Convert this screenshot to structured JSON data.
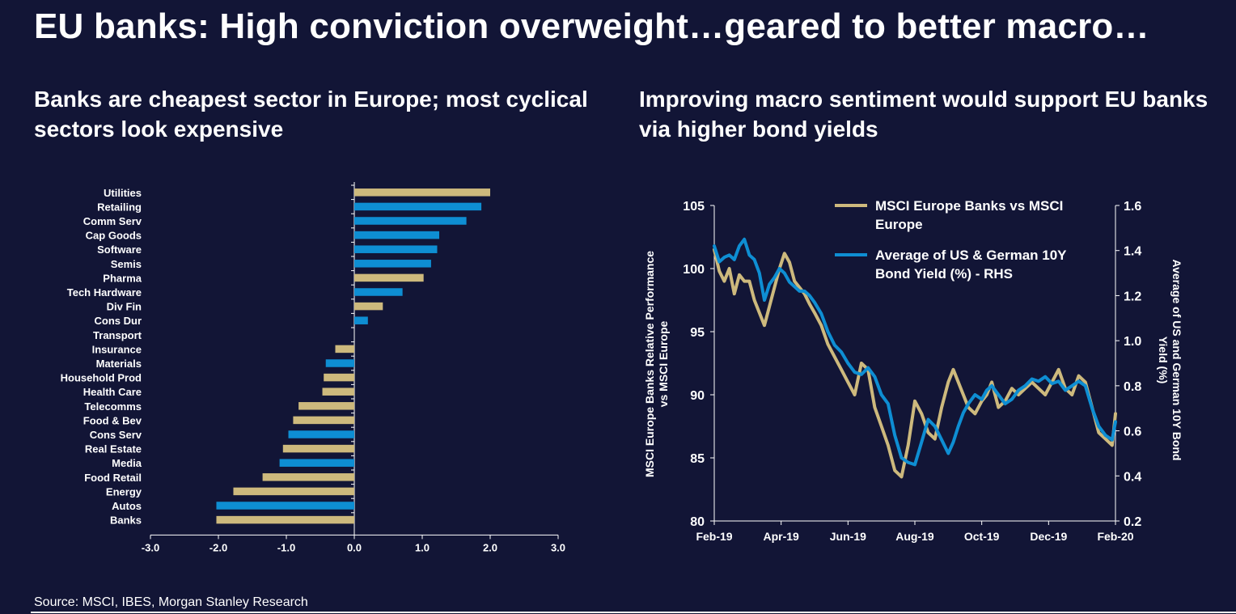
{
  "slide": {
    "title": "EU banks: High conviction overweight…geared to better macro…",
    "source": "Source: MSCI, IBES, Morgan Stanley Research"
  },
  "left_panel": {
    "subtitle": "Banks are cheapest sector in Europe; most cyclical sectors look expensive"
  },
  "right_panel": {
    "subtitle": "Improving macro sentiment would support EU banks via higher bond yields"
  },
  "colors": {
    "background": "#121536",
    "gold": "#cdb97d",
    "blue": "#0e8ed3",
    "text": "#ffffff"
  },
  "chart_data": [
    {
      "type": "bar",
      "orientation": "horizontal",
      "title": "",
      "categories": [
        "Utilities",
        "Retailing",
        "Comm Serv",
        "Cap Goods",
        "Software",
        "Semis",
        "Pharma",
        "Tech Hardware",
        "Div Fin",
        "Cons Dur",
        "Transport",
        "Insurance",
        "Materials",
        "Household Prod",
        "Health Care",
        "Telecomms",
        "Food & Bev",
        "Cons Serv",
        "Real Estate",
        "Media",
        "Food Retail",
        "Energy",
        "Autos",
        "Banks"
      ],
      "values": [
        2.0,
        1.87,
        1.65,
        1.25,
        1.22,
        1.13,
        1.02,
        0.71,
        0.42,
        0.2,
        0.0,
        -0.28,
        -0.42,
        -0.45,
        -0.47,
        -0.82,
        -0.9,
        -0.97,
        -1.05,
        -1.1,
        -1.35,
        -1.78,
        -2.03,
        -2.03
      ],
      "series_colors": [
        "gold",
        "blue",
        "blue",
        "blue",
        "blue",
        "blue",
        "gold",
        "blue",
        "gold",
        "blue",
        "gold",
        "gold",
        "blue",
        "gold",
        "gold",
        "gold",
        "gold",
        "blue",
        "gold",
        "blue",
        "gold",
        "gold",
        "blue",
        "gold"
      ],
      "xlim": [
        -3.0,
        3.0
      ],
      "xticks": [
        "-3.0",
        "-2.0",
        "-1.0",
        "0.0",
        "1.0",
        "2.0",
        "3.0"
      ],
      "xlabel": "",
      "ylabel": ""
    },
    {
      "type": "line",
      "title": "",
      "x_tick_labels": [
        "Feb-19",
        "Apr-19",
        "Jun-19",
        "Aug-19",
        "Oct-19",
        "Dec-19",
        "Feb-20"
      ],
      "x_months": [
        0,
        2,
        4,
        6,
        8,
        10,
        12
      ],
      "ylabel_left": "MSCI Europe Banks Relative Performance vs MSCI Europe",
      "ylabel_right": "Average of US and German 10Y Bond Yield (%)",
      "ylim_left": [
        80,
        105
      ],
      "yticks_left": [
        "80",
        "85",
        "90",
        "95",
        "100",
        "105"
      ],
      "ylim_right": [
        0.2,
        1.6
      ],
      "yticks_right": [
        "0.2",
        "0.4",
        "0.6",
        "0.8",
        "1.0",
        "1.2",
        "1.4",
        "1.6"
      ],
      "legend_position": "top-right",
      "series": [
        {
          "name": "MSCI Europe Banks vs MSCI Europe",
          "color": "gold",
          "axis": "left",
          "x": [
            0,
            0.15,
            0.3,
            0.45,
            0.6,
            0.75,
            0.9,
            1.05,
            1.2,
            1.35,
            1.5,
            1.65,
            1.8,
            1.95,
            2.1,
            2.25,
            2.4,
            2.55,
            2.7,
            2.85,
            3.0,
            3.2,
            3.4,
            3.6,
            3.8,
            4.0,
            4.2,
            4.4,
            4.6,
            4.8,
            5.0,
            5.2,
            5.4,
            5.6,
            5.8,
            6.0,
            6.2,
            6.4,
            6.6,
            6.8,
            7.0,
            7.15,
            7.3,
            7.45,
            7.6,
            7.8,
            8.0,
            8.15,
            8.3,
            8.5,
            8.7,
            8.9,
            9.1,
            9.3,
            9.5,
            9.7,
            9.9,
            10.1,
            10.3,
            10.5,
            10.7,
            10.9,
            11.1,
            11.3,
            11.5,
            11.7,
            11.9,
            12.0
          ],
          "values": [
            101.5,
            99.8,
            99.0,
            100.0,
            98.0,
            99.5,
            99.0,
            99.0,
            97.5,
            96.5,
            95.5,
            97.0,
            98.5,
            100.0,
            101.2,
            100.5,
            99.0,
            98.5,
            98.0,
            97.2,
            96.5,
            95.5,
            94.0,
            93.0,
            92.0,
            91.0,
            90.0,
            92.5,
            92.0,
            89.0,
            87.5,
            86.0,
            84.0,
            83.5,
            86.0,
            89.5,
            88.5,
            87.0,
            86.5,
            89.0,
            91.0,
            92.0,
            91.0,
            90.0,
            89.0,
            88.5,
            89.5,
            90.0,
            91.0,
            89.0,
            89.5,
            90.5,
            90.0,
            90.5,
            91.0,
            90.5,
            90.0,
            91.0,
            92.0,
            90.5,
            90.0,
            91.5,
            91.0,
            89.0,
            87.0,
            86.5,
            86.0,
            88.5
          ]
        },
        {
          "name": "Average of US & German 10Y Bond Yield (%) - RHS",
          "color": "blue",
          "axis": "right",
          "x": [
            0,
            0.15,
            0.3,
            0.45,
            0.6,
            0.75,
            0.9,
            1.05,
            1.2,
            1.35,
            1.5,
            1.65,
            1.8,
            1.95,
            2.1,
            2.25,
            2.4,
            2.55,
            2.7,
            2.85,
            3.0,
            3.2,
            3.4,
            3.6,
            3.8,
            4.0,
            4.2,
            4.4,
            4.6,
            4.8,
            5.0,
            5.2,
            5.4,
            5.6,
            5.8,
            6.0,
            6.2,
            6.4,
            6.6,
            6.8,
            7.0,
            7.15,
            7.3,
            7.45,
            7.6,
            7.8,
            8.0,
            8.15,
            8.3,
            8.5,
            8.7,
            8.9,
            9.1,
            9.3,
            9.5,
            9.7,
            9.9,
            10.1,
            10.3,
            10.5,
            10.7,
            10.9,
            11.1,
            11.3,
            11.5,
            11.7,
            11.9,
            12.0
          ],
          "values": [
            1.42,
            1.35,
            1.37,
            1.38,
            1.36,
            1.42,
            1.45,
            1.38,
            1.36,
            1.3,
            1.18,
            1.25,
            1.28,
            1.32,
            1.3,
            1.26,
            1.24,
            1.22,
            1.22,
            1.2,
            1.17,
            1.12,
            1.04,
            0.98,
            0.95,
            0.9,
            0.86,
            0.85,
            0.88,
            0.84,
            0.76,
            0.72,
            0.58,
            0.48,
            0.46,
            0.45,
            0.55,
            0.65,
            0.62,
            0.56,
            0.5,
            0.55,
            0.62,
            0.68,
            0.72,
            0.76,
            0.74,
            0.78,
            0.8,
            0.76,
            0.72,
            0.74,
            0.78,
            0.8,
            0.83,
            0.82,
            0.84,
            0.81,
            0.82,
            0.78,
            0.8,
            0.82,
            0.8,
            0.7,
            0.62,
            0.58,
            0.56,
            0.64
          ]
        }
      ]
    }
  ]
}
